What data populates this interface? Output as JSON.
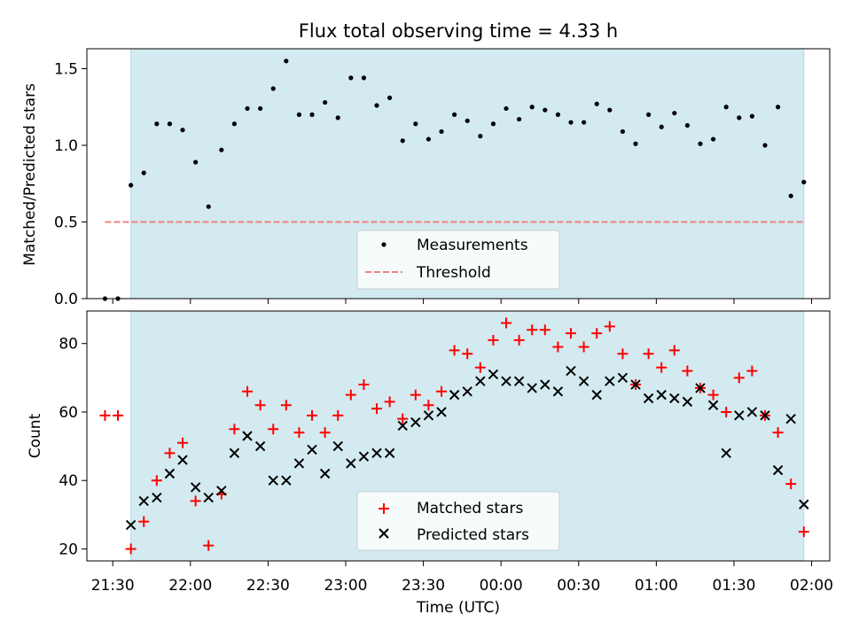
{
  "title": "Flux total observing time = 4.33 h",
  "xlabel": "Time (UTC)",
  "colors": {
    "observing_window": "#d3eaf0",
    "observing_window_edge": "#add8e6",
    "measurements": "#000000",
    "threshold": "#f08080",
    "matched": "#ff0000",
    "predicted": "#000000"
  },
  "chart_data": [
    {
      "type": "scatter",
      "ylabel": "Matched/Predicted stars",
      "xlim": [
        "21:20",
        "02:07"
      ],
      "ylim": [
        0,
        1.63
      ],
      "yticks": [
        0.0,
        0.5,
        1.0,
        1.5
      ],
      "ytick_labels": [
        "0.0",
        "0.5",
        "1.0",
        "1.5"
      ],
      "observing_window": [
        "21:37",
        "01:57"
      ],
      "threshold": 0.5,
      "legend": {
        "placement": "lower center",
        "entries": [
          "Measurements",
          "Threshold"
        ]
      },
      "series": [
        {
          "name": "Measurements",
          "marker": "dot",
          "x": [
            "21:27",
            "21:32",
            "21:37",
            "21:42",
            "21:47",
            "21:52",
            "21:57",
            "22:02",
            "22:07",
            "22:12",
            "22:17",
            "22:22",
            "22:27",
            "22:32",
            "22:37",
            "22:42",
            "22:47",
            "22:52",
            "22:57",
            "23:02",
            "23:07",
            "23:12",
            "23:17",
            "23:22",
            "23:27",
            "23:32",
            "23:37",
            "23:42",
            "23:47",
            "23:52",
            "23:57",
            "00:02",
            "00:07",
            "00:12",
            "00:17",
            "00:22",
            "00:27",
            "00:32",
            "00:37",
            "00:42",
            "00:47",
            "00:52",
            "00:57",
            "01:02",
            "01:07",
            "01:12",
            "01:17",
            "01:22",
            "01:27",
            "01:32",
            "01:37",
            "01:42",
            "01:47",
            "01:52",
            "01:57"
          ],
          "y": [
            0.0,
            0.0,
            0.74,
            0.82,
            1.14,
            1.14,
            1.1,
            0.89,
            0.6,
            0.97,
            1.14,
            1.24,
            1.24,
            1.37,
            1.55,
            1.2,
            1.2,
            1.28,
            1.18,
            1.44,
            1.44,
            1.26,
            1.31,
            1.03,
            1.14,
            1.04,
            1.09,
            1.2,
            1.16,
            1.06,
            1.14,
            1.24,
            1.17,
            1.25,
            1.23,
            1.2,
            1.15,
            1.15,
            1.27,
            1.23,
            1.09,
            1.01,
            1.2,
            1.12,
            1.21,
            1.13,
            1.01,
            1.04,
            1.25,
            1.18,
            1.19,
            1.0,
            1.25,
            0.67,
            0.76
          ]
        },
        {
          "name": "Threshold",
          "type": "line",
          "x": [
            "21:27",
            "01:57"
          ],
          "y": [
            0.5,
            0.5
          ]
        }
      ]
    },
    {
      "type": "scatter",
      "ylabel": "Count",
      "xlim": [
        "21:20",
        "02:07"
      ],
      "ylim": [
        16.5,
        89.5
      ],
      "yticks": [
        20,
        40,
        60,
        80
      ],
      "ytick_labels": [
        "20",
        "40",
        "60",
        "80"
      ],
      "xticks": [
        "21:30",
        "22:00",
        "22:30",
        "23:00",
        "23:30",
        "00:00",
        "00:30",
        "01:00",
        "01:30",
        "02:00"
      ],
      "observing_window": [
        "21:37",
        "01:57"
      ],
      "legend": {
        "placement": "lower center",
        "entries": [
          "Matched stars",
          "Predicted stars"
        ]
      },
      "series": [
        {
          "name": "Matched stars",
          "marker": "plus",
          "x": [
            "21:27",
            "21:32",
            "21:37",
            "21:42",
            "21:47",
            "21:52",
            "21:57",
            "22:02",
            "22:07",
            "22:12",
            "22:17",
            "22:22",
            "22:27",
            "22:32",
            "22:37",
            "22:42",
            "22:47",
            "22:52",
            "22:57",
            "23:02",
            "23:07",
            "23:12",
            "23:17",
            "23:22",
            "23:27",
            "23:32",
            "23:37",
            "23:42",
            "23:47",
            "23:52",
            "23:57",
            "00:02",
            "00:07",
            "00:12",
            "00:17",
            "00:22",
            "00:27",
            "00:32",
            "00:37",
            "00:42",
            "00:47",
            "00:52",
            "00:57",
            "01:02",
            "01:07",
            "01:12",
            "01:17",
            "01:22",
            "01:27",
            "01:32",
            "01:37",
            "01:42",
            "01:47",
            "01:52",
            "01:57"
          ],
          "y": [
            59,
            59,
            20,
            28,
            40,
            48,
            51,
            34,
            21,
            36,
            55,
            66,
            62,
            55,
            62,
            54,
            59,
            54,
            59,
            65,
            68,
            61,
            63,
            58,
            65,
            62,
            66,
            78,
            77,
            73,
            81,
            86,
            81,
            84,
            84,
            79,
            83,
            79,
            83,
            85,
            77,
            68,
            77,
            73,
            78,
            72,
            67,
            65,
            60,
            70,
            72,
            59,
            54,
            39,
            25
          ]
        },
        {
          "name": "Predicted stars",
          "marker": "x",
          "x": [
            "21:37",
            "21:42",
            "21:47",
            "21:52",
            "21:57",
            "22:02",
            "22:07",
            "22:12",
            "22:17",
            "22:22",
            "22:27",
            "22:32",
            "22:37",
            "22:42",
            "22:47",
            "22:52",
            "22:57",
            "23:02",
            "23:07",
            "23:12",
            "23:17",
            "23:22",
            "23:27",
            "23:32",
            "23:37",
            "23:42",
            "23:47",
            "23:52",
            "23:57",
            "00:02",
            "00:07",
            "00:12",
            "00:17",
            "00:22",
            "00:27",
            "00:32",
            "00:37",
            "00:42",
            "00:47",
            "00:52",
            "00:57",
            "01:02",
            "01:07",
            "01:12",
            "01:17",
            "01:22",
            "01:27",
            "01:32",
            "01:37",
            "01:42",
            "01:47",
            "01:52",
            "01:57"
          ],
          "y": [
            27,
            34,
            35,
            42,
            46,
            38,
            35,
            37,
            48,
            53,
            50,
            40,
            40,
            45,
            49,
            42,
            50,
            45,
            47,
            48,
            48,
            56,
            57,
            59,
            60,
            65,
            66,
            69,
            71,
            69,
            69,
            67,
            68,
            66,
            72,
            69,
            65,
            69,
            70,
            68,
            64,
            65,
            64,
            63,
            67,
            62,
            48,
            59,
            60,
            59,
            43,
            58,
            33
          ]
        }
      ]
    }
  ]
}
